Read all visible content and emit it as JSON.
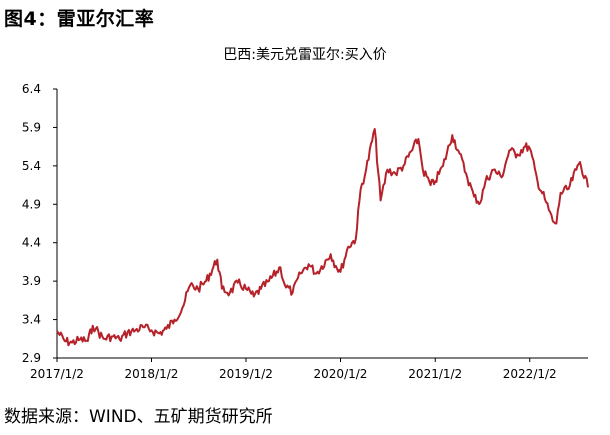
{
  "figure": {
    "title": "图4：雷亚尔汇率",
    "source": "数据来源：WIND、五矿期货研究所"
  },
  "chart_data": {
    "type": "line",
    "title": "巴西:美元兑雷亚尔:买入价",
    "xlabel": "",
    "ylabel": "",
    "ylim": [
      2.9,
      6.4
    ],
    "yticks": [
      2.9,
      3.4,
      3.9,
      4.4,
      4.9,
      5.4,
      5.9,
      6.4
    ],
    "ytick_labels": [
      "2.9",
      "3.4",
      "3.9",
      "4.4",
      "4.9",
      "5.4",
      "5.9",
      "6.4"
    ],
    "xlim": [
      "2017-01-02",
      "2022-08-15"
    ],
    "xticks": [
      "2017-01-02",
      "2018-01-02",
      "2019-01-02",
      "2020-01-02",
      "2021-01-02",
      "2022-01-02"
    ],
    "xtick_labels": [
      "2017/1/2",
      "2018/1/2",
      "2019/1/2",
      "2020/1/2",
      "2021/1/2",
      "2022/1/2"
    ],
    "grid": false,
    "legend": "none",
    "line_color": "#b5222a",
    "series": [
      {
        "x": [
          "2017-01-02",
          "2017-02-01",
          "2017-03-01",
          "2017-04-01",
          "2017-05-01",
          "2017-05-20",
          "2017-06-01",
          "2017-07-01",
          "2017-08-01",
          "2017-09-01",
          "2017-10-01",
          "2017-11-01",
          "2017-12-01",
          "2018-01-02",
          "2018-02-01",
          "2018-03-01",
          "2018-04-01",
          "2018-05-01",
          "2018-06-01",
          "2018-07-01",
          "2018-08-01",
          "2018-09-13",
          "2018-10-01",
          "2018-11-01",
          "2018-12-01",
          "2019-01-02",
          "2019-02-01",
          "2019-03-01",
          "2019-04-01",
          "2019-05-15",
          "2019-06-01",
          "2019-07-01",
          "2019-08-01",
          "2019-09-01",
          "2019-10-01",
          "2019-11-25",
          "2019-12-15",
          "2020-01-02",
          "2020-02-01",
          "2020-03-01",
          "2020-03-20",
          "2020-04-10",
          "2020-05-13",
          "2020-06-05",
          "2020-07-01",
          "2020-08-01",
          "2020-09-01",
          "2020-10-29",
          "2020-11-15",
          "2020-12-15",
          "2021-01-02",
          "2021-02-01",
          "2021-03-09",
          "2021-04-01",
          "2021-05-01",
          "2021-06-01",
          "2021-06-25",
          "2021-07-15",
          "2021-08-15",
          "2021-09-15",
          "2021-10-15",
          "2021-11-15",
          "2021-12-15",
          "2022-01-02",
          "2022-02-01",
          "2022-03-01",
          "2022-04-01",
          "2022-04-15",
          "2022-05-01",
          "2022-06-01",
          "2022-07-01",
          "2022-07-15",
          "2022-08-15"
        ],
        "y": [
          3.25,
          3.12,
          3.1,
          3.14,
          3.12,
          3.32,
          3.28,
          3.15,
          3.18,
          3.14,
          3.23,
          3.26,
          3.3,
          3.26,
          3.22,
          3.28,
          3.4,
          3.55,
          3.85,
          3.8,
          3.9,
          4.18,
          3.8,
          3.75,
          3.88,
          3.8,
          3.7,
          3.8,
          3.9,
          4.08,
          3.85,
          3.75,
          4.0,
          4.12,
          4.0,
          4.25,
          4.1,
          4.02,
          4.35,
          4.45,
          5.1,
          5.35,
          5.88,
          4.95,
          5.35,
          5.3,
          5.4,
          5.75,
          5.35,
          5.15,
          5.2,
          5.4,
          5.8,
          5.6,
          5.3,
          5.0,
          4.92,
          5.2,
          5.35,
          5.25,
          5.6,
          5.55,
          5.65,
          5.63,
          5.2,
          4.97,
          4.68,
          4.65,
          5.05,
          5.1,
          5.35,
          5.45,
          5.12
        ]
      }
    ]
  }
}
